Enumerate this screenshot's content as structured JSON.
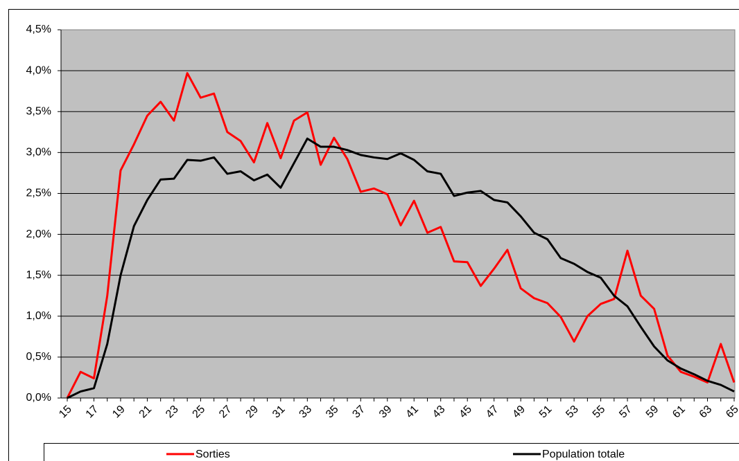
{
  "chart_data": {
    "type": "line",
    "categories": [
      "15",
      null,
      "17",
      null,
      "19",
      null,
      "21",
      null,
      "23",
      null,
      "25",
      null,
      "27",
      null,
      "29",
      null,
      "31",
      null,
      "33",
      null,
      "35",
      null,
      "37",
      null,
      "39",
      null,
      "41",
      null,
      "43",
      null,
      "45",
      null,
      "47",
      null,
      "49",
      null,
      "51",
      null,
      "53",
      null,
      "55",
      null,
      "57",
      null,
      "59",
      null,
      "61",
      null,
      "63",
      null,
      "65"
    ],
    "series": [
      {
        "name": "Sorties",
        "color": "#ff0000",
        "values": [
          0,
          0.32,
          0.24,
          1.25,
          2.78,
          3.1,
          3.45,
          3.62,
          3.39,
          3.97,
          3.67,
          3.72,
          3.25,
          3.14,
          2.88,
          3.36,
          2.93,
          3.39,
          3.49,
          2.85,
          3.18,
          2.92,
          2.52,
          2.56,
          2.49,
          2.11,
          2.41,
          2.02,
          2.09,
          1.67,
          1.66,
          1.37,
          1.58,
          1.81,
          1.34,
          1.22,
          1.16,
          0.99,
          0.69,
          1.0,
          1.15,
          1.21,
          1.8,
          1.25,
          1.09,
          0.52,
          0.32,
          0.26,
          0.19,
          0.66,
          0.19
        ]
      },
      {
        "name": "Population totale",
        "color": "#000000",
        "values": [
          0,
          0.08,
          0.12,
          0.66,
          1.5,
          2.1,
          2.42,
          2.67,
          2.68,
          2.91,
          2.9,
          2.94,
          2.74,
          2.77,
          2.66,
          2.73,
          2.57,
          2.87,
          3.17,
          3.07,
          3.07,
          3.03,
          2.97,
          2.94,
          2.92,
          2.99,
          2.91,
          2.77,
          2.74,
          2.47,
          2.51,
          2.53,
          2.42,
          2.39,
          2.22,
          2.02,
          1.94,
          1.71,
          1.64,
          1.54,
          1.47,
          1.25,
          1.12,
          0.87,
          0.63,
          0.46,
          0.36,
          0.29,
          0.21,
          0.16,
          0.08
        ]
      }
    ],
    "ylim": [
      0,
      4.5
    ],
    "yticks": [
      {
        "value": 0,
        "label": "0,0%"
      },
      {
        "value": 0.5,
        "label": "0,5%"
      },
      {
        "value": 1,
        "label": "1,0%"
      },
      {
        "value": 1.5,
        "label": "1,5%"
      },
      {
        "value": 2,
        "label": "2,0%"
      },
      {
        "value": 2.5,
        "label": "2,5%"
      },
      {
        "value": 3,
        "label": "3,0%"
      },
      {
        "value": 3.5,
        "label": "3,5%"
      },
      {
        "value": 4,
        "label": "4,0%"
      },
      {
        "value": 4.5,
        "label": "4,5%"
      }
    ],
    "grid": true,
    "legend": "bottom",
    "background": "#c0c0c0"
  }
}
